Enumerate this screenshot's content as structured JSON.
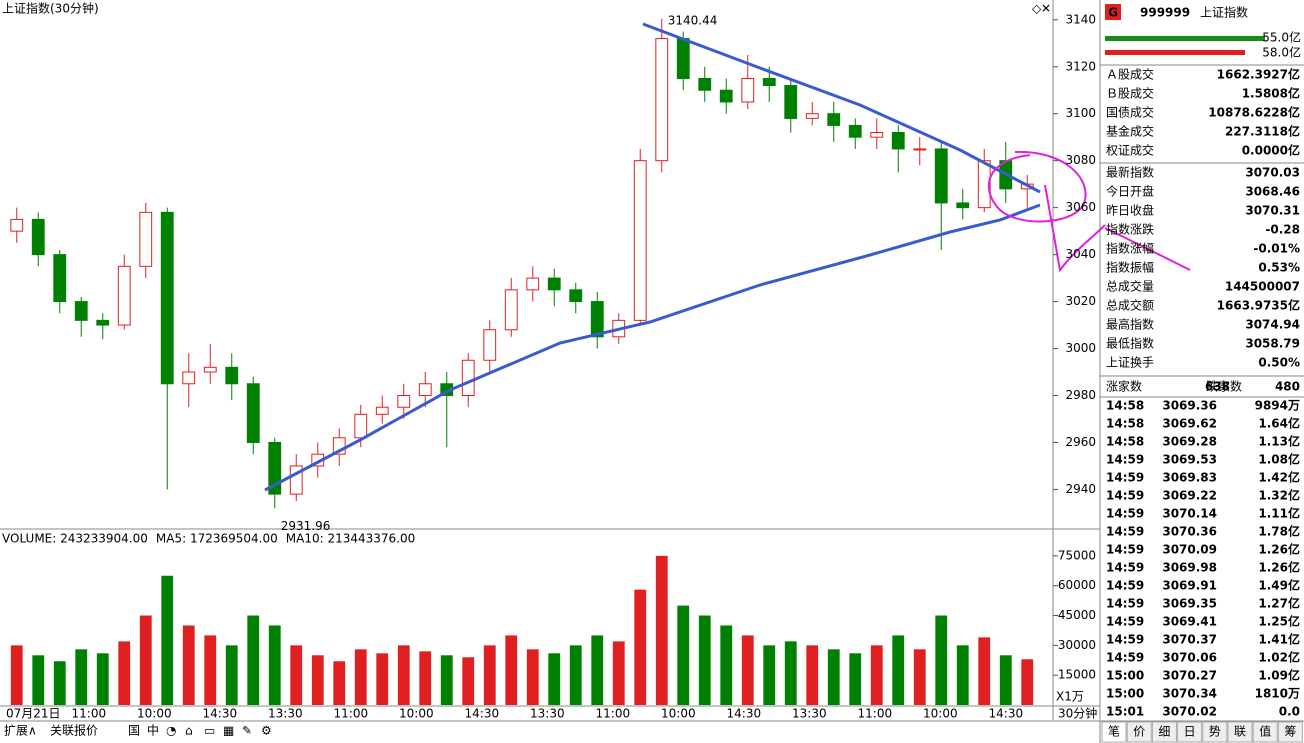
{
  "title": "上证指数(30分钟)",
  "chart_data": {
    "type": "candlestick",
    "open": [
      3050,
      3055,
      3040,
      3020,
      3012,
      3010,
      3035,
      3058,
      2985,
      2990,
      2992,
      2985,
      2960,
      2938,
      2950,
      2955,
      2962,
      2972,
      2975,
      2980,
      2985,
      2980,
      2995,
      3008,
      3025,
      3030,
      3025,
      3020,
      3005,
      3012,
      3080,
      3132,
      3115,
      3110,
      3105,
      3115,
      3112,
      3098,
      3100,
      3095,
      3090,
      3092,
      3085,
      3085,
      3062,
      3060,
      3080,
      3068
    ],
    "high": [
      3060,
      3058,
      3042,
      3022,
      3015,
      3040,
      3062,
      3060,
      2998,
      3002,
      2998,
      2988,
      2962,
      2955,
      2960,
      2966,
      2976,
      2980,
      2985,
      2990,
      2990,
      2998,
      3012,
      3030,
      3035,
      3034,
      3028,
      3024,
      3015,
      3085,
      3140.44,
      3135,
      3120,
      3115,
      3125,
      3120,
      3115,
      3105,
      3105,
      3098,
      3098,
      3095,
      3090,
      3088,
      3068,
      3085,
      3088,
      3074
    ],
    "low": [
      3045,
      3035,
      3015,
      3005,
      3004,
      3008,
      3030,
      2940,
      2975,
      2985,
      2978,
      2955,
      2931.96,
      2935,
      2945,
      2950,
      2958,
      2968,
      2970,
      2975,
      2958,
      2975,
      2990,
      3005,
      3020,
      3018,
      3015,
      3000,
      3002,
      3010,
      3075,
      3110,
      3105,
      3100,
      3102,
      3105,
      3092,
      3095,
      3088,
      3085,
      3085,
      3075,
      3078,
      3042,
      3055,
      3058,
      3062,
      3060
    ],
    "close": [
      3055,
      3040,
      3020,
      3012,
      3010,
      3035,
      3058,
      2985,
      2990,
      2992,
      2985,
      2960,
      2938,
      2950,
      2955,
      2962,
      2972,
      2975,
      2980,
      2985,
      2980,
      2995,
      3008,
      3025,
      3030,
      3025,
      3020,
      3005,
      3012,
      3080,
      3132,
      3115,
      3110,
      3105,
      3115,
      3112,
      3098,
      3100,
      3095,
      3090,
      3092,
      3085,
      3085,
      3062,
      3060,
      3080,
      3068,
      3070.03
    ],
    "ylim": [
      2924,
      3148
    ],
    "yticks": [
      2940,
      2960,
      2980,
      3000,
      3020,
      3040,
      3060,
      3080,
      3100,
      3120,
      3140
    ],
    "high_label": "3140.44",
    "low_label": "2931.96",
    "up_color": "#e02020",
    "down_color": "#008000",
    "xlabels": [
      "07月21日",
      "11:00",
      "10:00",
      "14:30",
      "13:30",
      "11:00",
      "10:00",
      "14:30",
      "13:30",
      "11:00",
      "10:00",
      "14:30",
      "13:30",
      "11:00",
      "10:00",
      "14:30"
    ]
  },
  "volume_chart": {
    "type": "bar",
    "legend": [
      {
        "text": "VOLUME: 243233904.00",
        "color": "#000080"
      },
      {
        "text": "MA5: 172369504.00",
        "color": "#000080"
      },
      {
        "text": "MA10: 213443376.00",
        "color": "#c000c0"
      }
    ],
    "values": [
      30000,
      25000,
      22000,
      28000,
      26000,
      32000,
      45000,
      65000,
      40000,
      35000,
      30000,
      45000,
      40000,
      30000,
      25000,
      22000,
      28000,
      26000,
      30000,
      27000,
      25000,
      24000,
      30000,
      35000,
      28000,
      26000,
      30000,
      35000,
      32000,
      58000,
      75000,
      50000,
      45000,
      40000,
      35000,
      30000,
      32000,
      30000,
      28000,
      26000,
      30000,
      35000,
      28000,
      45000,
      30000,
      34000,
      25000,
      23000
    ],
    "ylim": [
      0,
      87000
    ],
    "yticks": [
      15000,
      30000,
      45000,
      60000,
      75000
    ],
    "unit": "X1万"
  },
  "period": "30分钟",
  "toolbar": [
    "扩展∧",
    "关联报价"
  ],
  "quote": {
    "flag": "G",
    "code": "999999",
    "name": "上证指数",
    "buy": "55.0亿",
    "sell": "58.0亿",
    "stats": [
      {
        "label": "Ａ股成交",
        "value": "1662.3927亿",
        "color": "#e02020"
      },
      {
        "label": "Ｂ股成交",
        "value": "1.5808亿",
        "color": "#e02020"
      },
      {
        "label": "国债成交",
        "value": "10878.6228亿",
        "color": "#e02020"
      },
      {
        "label": "基金成交",
        "value": "227.3118亿",
        "color": "#e02020"
      },
      {
        "label": "权证成交",
        "value": "0.0000亿",
        "color": "#e02020"
      },
      {
        "label": "最新指数",
        "value": "3070.03",
        "color": "#008000"
      },
      {
        "label": "今日开盘",
        "value": "3068.46",
        "color": "#008000"
      },
      {
        "label": "昨日收盘",
        "value": "3070.31",
        "color": "#000000"
      },
      {
        "label": "指数涨跌",
        "value": "-0.28",
        "color": "#008000"
      },
      {
        "label": "指数涨幅",
        "value": "-0.01%",
        "color": "#008000"
      },
      {
        "label": "指数振幅",
        "value": "0.53%",
        "color": "#000000"
      },
      {
        "label": "总成交量",
        "value": "144500007",
        "color": "#d05000"
      },
      {
        "label": "总成交额",
        "value": "1663.9735亿",
        "color": "#e02020"
      },
      {
        "label": "最高指数",
        "value": "3074.94",
        "color": "#e02020"
      },
      {
        "label": "最低指数",
        "value": "3058.79",
        "color": "#008000"
      },
      {
        "label": "上证换手",
        "value": "0.50%",
        "color": "#000000"
      }
    ],
    "breadth": [
      "涨家数",
      "638",
      "跌家数",
      "480"
    ],
    "ticks": [
      [
        "14:58",
        "3069.36",
        "9894万"
      ],
      [
        "14:58",
        "3069.62",
        "1.64亿"
      ],
      [
        "14:58",
        "3069.28",
        "1.13亿"
      ],
      [
        "14:59",
        "3069.53",
        "1.08亿"
      ],
      [
        "14:59",
        "3069.83",
        "1.42亿"
      ],
      [
        "14:59",
        "3069.22",
        "1.32亿"
      ],
      [
        "14:59",
        "3070.14",
        "1.11亿"
      ],
      [
        "14:59",
        "3070.36",
        "1.78亿"
      ],
      [
        "14:59",
        "3070.09",
        "1.26亿"
      ],
      [
        "14:59",
        "3069.98",
        "1.26亿"
      ],
      [
        "14:59",
        "3069.91",
        "1.49亿"
      ],
      [
        "14:59",
        "3069.35",
        "1.27亿"
      ],
      [
        "14:59",
        "3069.41",
        "1.25亿"
      ],
      [
        "14:59",
        "3070.37",
        "1.41亿"
      ],
      [
        "14:59",
        "3070.06",
        "1.02亿"
      ],
      [
        "15:00",
        "3070.27",
        "1.09亿"
      ],
      [
        "15:00",
        "3070.34",
        "1810万"
      ],
      [
        "15:01",
        "3070.02",
        "0.0"
      ]
    ],
    "tabs": [
      "笔",
      "价",
      "细",
      "日",
      "势",
      "联",
      "值",
      "筹"
    ]
  }
}
